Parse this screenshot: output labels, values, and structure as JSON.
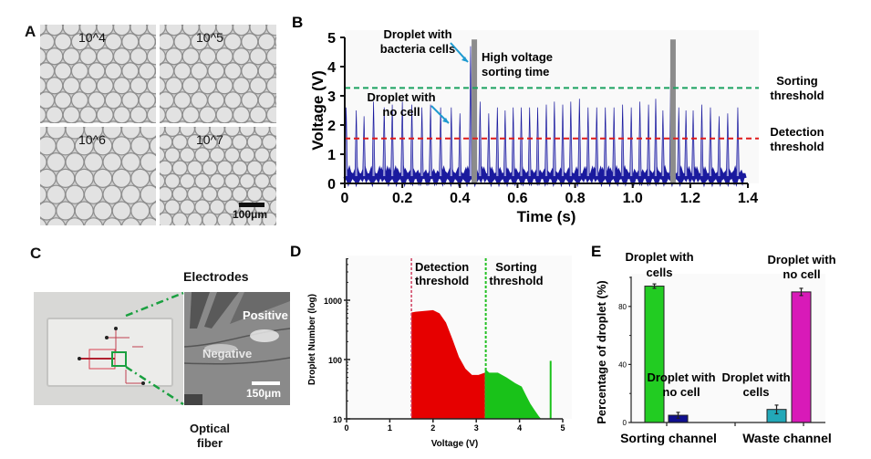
{
  "figure": {
    "panels": {
      "A": {
        "label": "A",
        "images": [
          {
            "label": "10^4"
          },
          {
            "label": "10^5"
          },
          {
            "label": "10^6"
          },
          {
            "label": "10^7"
          }
        ],
        "scale_bar": "100μm"
      },
      "C": {
        "label": "C",
        "electrodes": "Electrodes",
        "positive": "Positive",
        "negative": "Negative",
        "scale_bar": "150μm",
        "optical": "Optical",
        "fiber": "fiber"
      }
    }
  },
  "chart_data": [
    {
      "panel": "B",
      "type": "line",
      "title": "",
      "xlabel": "Time (s)",
      "ylabel": "Voltage (V)",
      "xlim": [
        0,
        1.4
      ],
      "ylim": [
        0,
        5
      ],
      "xticks": [
        "0",
        "0.2",
        "0.4",
        "0.6",
        "0.8",
        "1.0",
        "1.2",
        "1.4"
      ],
      "yticks": [
        "0",
        "1",
        "2",
        "3",
        "4",
        "5"
      ],
      "baseline": 0.25,
      "peak_times": [
        0.005,
        0.04,
        0.067,
        0.1,
        0.137,
        0.165,
        0.2,
        0.233,
        0.268,
        0.298,
        0.333,
        0.37,
        0.4,
        0.437,
        0.47,
        0.5,
        0.53,
        0.557,
        0.585,
        0.613,
        0.642,
        0.67,
        0.7,
        0.728,
        0.757,
        0.785,
        0.815,
        0.845,
        0.875,
        0.905,
        0.935,
        0.965,
        0.995,
        1.025,
        1.055,
        1.08,
        1.105,
        1.133,
        1.16,
        1.185,
        1.21,
        1.24,
        1.27,
        1.3,
        1.33,
        1.365
      ],
      "peak_values": [
        2.6,
        2.5,
        2.3,
        2.8,
        2.6,
        2.7,
        2.8,
        2.7,
        2.6,
        2.7,
        2.6,
        2.6,
        2.4,
        4.7,
        2.8,
        2.4,
        2.6,
        2.5,
        2.6,
        2.6,
        2.6,
        2.6,
        2.7,
        2.8,
        2.7,
        2.8,
        2.9,
        2.6,
        2.6,
        2.6,
        2.6,
        2.7,
        2.6,
        2.8,
        2.7,
        2.9,
        2.5,
        4.7,
        2.6,
        2.5,
        2.5,
        2.7,
        2.6,
        2.3,
        2.4,
        2.6
      ],
      "sorting_bars": [
        0.45,
        1.14
      ],
      "sorting_threshold": 3.27,
      "detection_threshold": 1.54,
      "annotations": {
        "bacteria": [
          "Droplet with",
          "bacteria cells"
        ],
        "high_voltage": [
          "High voltage",
          "sorting time"
        ],
        "no_cell": [
          "Droplet with",
          "no cell"
        ],
        "sorting": [
          "Sorting",
          "threshold"
        ],
        "detection": [
          "Detection",
          "threshold"
        ]
      },
      "colors": {
        "signal": "#1a1a9e",
        "signal_light": "#9a9ad8",
        "sorting": "#1aa260",
        "detection": "#e01b1b",
        "bar": "#8c8c8c",
        "arrow": "#1e9ad0"
      },
      "panel_label": "B"
    },
    {
      "panel": "D",
      "type": "area",
      "xlabel": "Voltage (V)",
      "ylabel": "Droplet Number (log)",
      "xlim": [
        0,
        5
      ],
      "ylim": [
        10,
        4000
      ],
      "yscale": "log",
      "xticks": [
        "0",
        "1",
        "2",
        "3",
        "4",
        "5"
      ],
      "yticks": [
        "10",
        "100",
        "1000"
      ],
      "red_region": {
        "x": [
          1.5,
          1.6,
          1.8,
          2.0,
          2.15,
          2.3,
          2.45,
          2.6,
          2.75,
          2.9,
          3.05,
          3.2
        ],
        "y": [
          620,
          640,
          660,
          680,
          600,
          420,
          220,
          110,
          70,
          55,
          55,
          60
        ]
      },
      "green_region": {
        "x": [
          3.2,
          3.3,
          3.5,
          3.7,
          3.9,
          4.05,
          4.15,
          4.25,
          4.35,
          4.45,
          4.5
        ],
        "y": [
          70,
          60,
          60,
          50,
          40,
          35,
          25,
          18,
          14,
          11,
          10
        ]
      },
      "spike": {
        "x": 4.72,
        "y": 95
      },
      "detection_threshold": 1.5,
      "sorting_threshold": 3.22,
      "annotations": {
        "detection": [
          "Detection",
          "threshold"
        ],
        "sorting": [
          "Sorting",
          "threshold"
        ]
      },
      "colors": {
        "red": "#e60000",
        "green": "#19c219",
        "det_line": "#d04060",
        "sort_line": "#22c022"
      },
      "panel_label": "D"
    },
    {
      "panel": "E",
      "type": "bar",
      "ylabel": "Percentage of droplet (%)",
      "ylim": [
        0,
        100
      ],
      "yticks": [
        "0",
        "40",
        "80"
      ],
      "categories": [
        "Sorting channel",
        "Waste channel"
      ],
      "bars": [
        {
          "category": "Sorting channel",
          "label": [
            "Droplet with",
            "cells"
          ],
          "value": 94,
          "error": 1.5,
          "color": "#22cc22"
        },
        {
          "category": "Sorting channel",
          "label": [
            "Droplet with",
            "no cell"
          ],
          "value": 5,
          "error": 2,
          "color": "#10108f"
        },
        {
          "category": "Waste channel",
          "label": [
            "Droplet with",
            "cells"
          ],
          "value": 9,
          "error": 3,
          "color": "#22a8b8"
        },
        {
          "category": "Waste channel",
          "label": [
            "Droplet with",
            "no cell"
          ],
          "value": 90,
          "error": 2.5,
          "color": "#d81ab8"
        }
      ],
      "panel_label": "E"
    }
  ]
}
